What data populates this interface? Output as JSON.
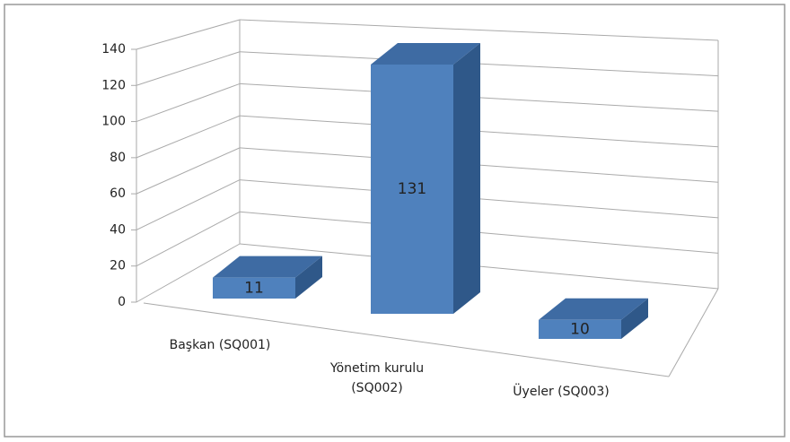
{
  "chart_data": {
    "type": "bar3d",
    "categories": [
      "Başkan (SQ001)",
      "Yönetim kurulu (SQ002)",
      "Üyeler (SQ003)"
    ],
    "values": [
      11,
      131,
      10
    ],
    "color": "#4f81bd",
    "ylim": [
      0,
      140
    ],
    "yticks": [
      0,
      20,
      40,
      60,
      80,
      100,
      120,
      140
    ],
    "grid": true
  }
}
